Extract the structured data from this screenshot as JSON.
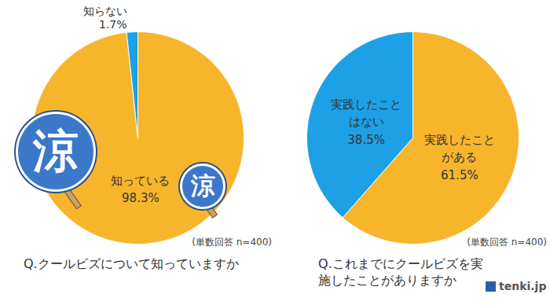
{
  "chart_data": [
    {
      "type": "pie",
      "title": "Q.クールビズについて知っていますか",
      "categories": [
        "知っている",
        "知らない"
      ],
      "values": [
        98.3,
        1.7
      ],
      "value_labels": [
        "98.3%",
        "1.7%"
      ],
      "colors": [
        "#f7b52c",
        "#1ea0e6"
      ],
      "data_labels": true,
      "annotations": [
        "(単数回答 n=400)",
        "涼",
        "涼"
      ]
    },
    {
      "type": "pie",
      "title": "Q.これまでにクールビズを実施したことがありますか",
      "categories": [
        "実践したことがある",
        "実践したことはない"
      ],
      "values": [
        61.5,
        38.5
      ],
      "value_labels": [
        "61.5%",
        "38.5%"
      ],
      "colors": [
        "#f7b52c",
        "#1ea0e6"
      ],
      "data_labels": true,
      "annotations": [
        "(単数回答 n=400)",
        "tenki.jp"
      ]
    }
  ]
}
